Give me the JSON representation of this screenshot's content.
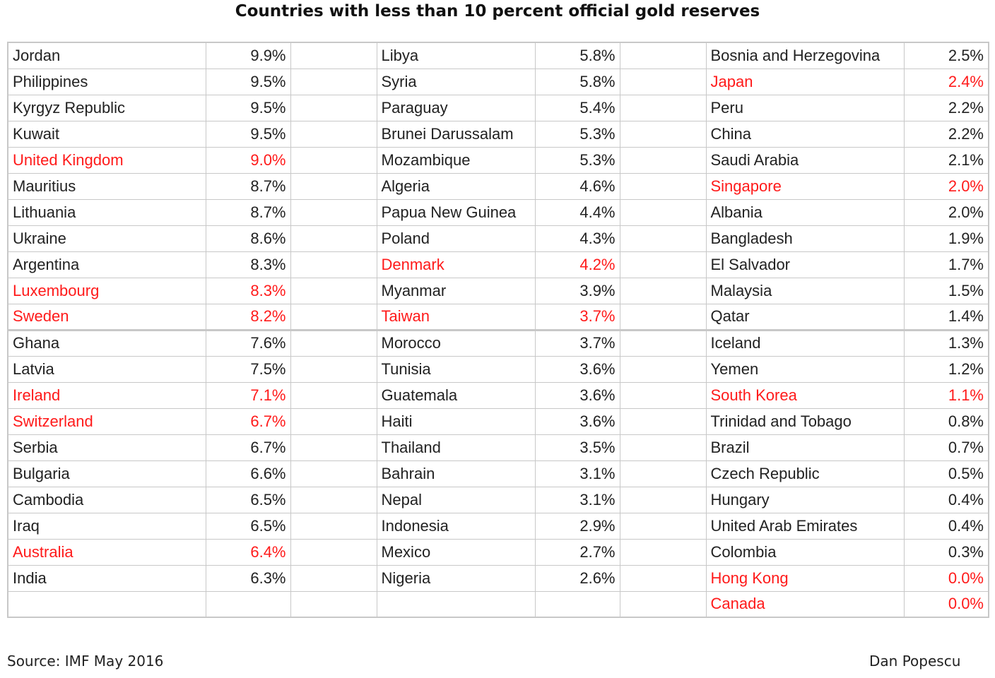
{
  "title": "Countries with less than 10 percent official gold reserves",
  "footer": {
    "source": "Source: IMF May 2016",
    "author": "Dan Popescu"
  },
  "colors": {
    "highlight": "#ff1a1a",
    "normal": "#222222",
    "border": "#c8c8c8"
  },
  "columns": [
    [
      {
        "country": "Jordan",
        "value": "9.9%",
        "highlight": false
      },
      {
        "country": "Philippines",
        "value": "9.5%",
        "highlight": false
      },
      {
        "country": "Kyrgyz Republic",
        "value": "9.5%",
        "highlight": false
      },
      {
        "country": "Kuwait",
        "value": "9.5%",
        "highlight": false
      },
      {
        "country": "United Kingdom",
        "value": "9.0%",
        "highlight": true
      },
      {
        "country": "Mauritius",
        "value": "8.7%",
        "highlight": false
      },
      {
        "country": "Lithuania",
        "value": "8.7%",
        "highlight": false
      },
      {
        "country": "Ukraine",
        "value": "8.6%",
        "highlight": false
      },
      {
        "country": "Argentina",
        "value": "8.3%",
        "highlight": false
      },
      {
        "country": "Luxembourg",
        "value": "8.3%",
        "highlight": true
      },
      {
        "country": "Sweden",
        "value": "8.2%",
        "highlight": true
      },
      {
        "country": "Ghana",
        "value": "7.6%",
        "highlight": false
      },
      {
        "country": "Latvia",
        "value": "7.5%",
        "highlight": false
      },
      {
        "country": "Ireland",
        "value": "7.1%",
        "highlight": true
      },
      {
        "country": "Switzerland",
        "value": "6.7%",
        "highlight": true
      },
      {
        "country": "Serbia",
        "value": "6.7%",
        "highlight": false
      },
      {
        "country": "Bulgaria",
        "value": "6.6%",
        "highlight": false
      },
      {
        "country": "Cambodia",
        "value": "6.5%",
        "highlight": false
      },
      {
        "country": "Iraq",
        "value": "6.5%",
        "highlight": false
      },
      {
        "country": "Australia",
        "value": "6.4%",
        "highlight": true
      },
      {
        "country": "India",
        "value": "6.3%",
        "highlight": false
      },
      {
        "country": "",
        "value": "",
        "highlight": false
      }
    ],
    [
      {
        "country": "Libya",
        "value": "5.8%",
        "highlight": false
      },
      {
        "country": "Syria",
        "value": "5.8%",
        "highlight": false
      },
      {
        "country": "Paraguay",
        "value": "5.4%",
        "highlight": false
      },
      {
        "country": "Brunei Darussalam",
        "value": "5.3%",
        "highlight": false
      },
      {
        "country": "Mozambique",
        "value": "5.3%",
        "highlight": false
      },
      {
        "country": "Algeria",
        "value": "4.6%",
        "highlight": false
      },
      {
        "country": "Papua New Guinea",
        "value": "4.4%",
        "highlight": false
      },
      {
        "country": "Poland",
        "value": "4.3%",
        "highlight": false
      },
      {
        "country": "Denmark",
        "value": "4.2%",
        "highlight": true
      },
      {
        "country": "Myanmar",
        "value": "3.9%",
        "highlight": false
      },
      {
        "country": "Taiwan",
        "value": "3.7%",
        "highlight": true
      },
      {
        "country": "Morocco",
        "value": "3.7%",
        "highlight": false
      },
      {
        "country": "Tunisia",
        "value": "3.6%",
        "highlight": false
      },
      {
        "country": "Guatemala",
        "value": "3.6%",
        "highlight": false
      },
      {
        "country": "Haiti",
        "value": "3.6%",
        "highlight": false
      },
      {
        "country": "Thailand",
        "value": "3.5%",
        "highlight": false
      },
      {
        "country": "Bahrain",
        "value": "3.1%",
        "highlight": false
      },
      {
        "country": "Nepal",
        "value": "3.1%",
        "highlight": false
      },
      {
        "country": "Indonesia",
        "value": "2.9%",
        "highlight": false
      },
      {
        "country": "Mexico",
        "value": "2.7%",
        "highlight": false
      },
      {
        "country": "Nigeria",
        "value": "2.6%",
        "highlight": false
      },
      {
        "country": "",
        "value": "",
        "highlight": false
      }
    ],
    [
      {
        "country": "Bosnia and Herzegovina",
        "value": "2.5%",
        "highlight": false
      },
      {
        "country": "Japan",
        "value": "2.4%",
        "highlight": true
      },
      {
        "country": "Peru",
        "value": "2.2%",
        "highlight": false
      },
      {
        "country": "China",
        "value": "2.2%",
        "highlight": false
      },
      {
        "country": "Saudi Arabia",
        "value": "2.1%",
        "highlight": false
      },
      {
        "country": "Singapore",
        "value": "2.0%",
        "highlight": true
      },
      {
        "country": "Albania",
        "value": "2.0%",
        "highlight": false
      },
      {
        "country": "Bangladesh",
        "value": "1.9%",
        "highlight": false
      },
      {
        "country": "El Salvador",
        "value": "1.7%",
        "highlight": false
      },
      {
        "country": "Malaysia",
        "value": "1.5%",
        "highlight": false
      },
      {
        "country": "Qatar",
        "value": "1.4%",
        "highlight": false
      },
      {
        "country": "Iceland",
        "value": "1.3%",
        "highlight": false
      },
      {
        "country": "Yemen",
        "value": "1.2%",
        "highlight": false
      },
      {
        "country": "South Korea",
        "value": "1.1%",
        "highlight": true
      },
      {
        "country": "Trinidad and Tobago",
        "value": "0.8%",
        "highlight": false
      },
      {
        "country": "Brazil",
        "value": "0.7%",
        "highlight": false
      },
      {
        "country": "Czech Republic",
        "value": "0.5%",
        "highlight": false
      },
      {
        "country": "Hungary",
        "value": "0.4%",
        "highlight": false
      },
      {
        "country": "United Arab Emirates",
        "value": "0.4%",
        "highlight": false
      },
      {
        "country": "Colombia",
        "value": "0.3%",
        "highlight": false
      },
      {
        "country": "Hong Kong",
        "value": "0.0%",
        "highlight": true
      },
      {
        "country": "Canada",
        "value": "0.0%",
        "highlight": true
      }
    ]
  ]
}
